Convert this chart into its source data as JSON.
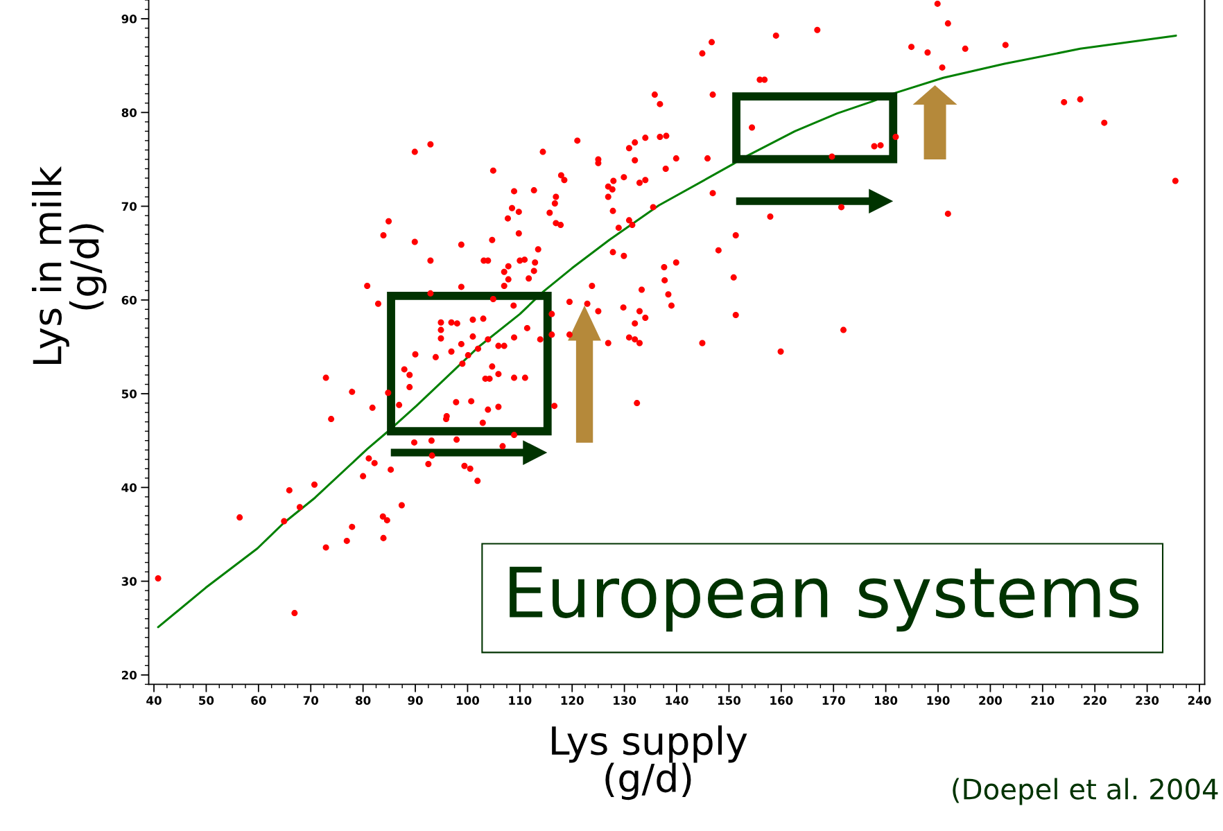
{
  "chart_data": {
    "type": "scatter",
    "xlabel": "Lys supply\n(g/d)",
    "ylabel": "Lys in milk\n(g/d)",
    "annotations": [
      "European systems",
      "(Doepel et al. 2004"
    ],
    "xlim": [
      39,
      241
    ],
    "ylim": [
      19,
      92
    ],
    "xticks": [
      40,
      50,
      60,
      70,
      80,
      90,
      100,
      110,
      120,
      130,
      140,
      150,
      160,
      170,
      180,
      190,
      200,
      210,
      220,
      230,
      240
    ],
    "yticks": [
      20,
      30,
      40,
      50,
      60,
      70,
      80,
      90
    ],
    "marker": "circle",
    "series": [
      {
        "color": "#ff0000",
        "x": [
          89.9,
          92.9,
          104.9,
          108.9,
          108.5,
          109.8,
          107.7,
          109.8,
          84.9,
          83.9,
          89.9,
          98.8,
          104.7,
          92.9,
          103.1,
          103.9,
          110.0,
          107.8,
          107.0,
          107.8,
          107.0,
          80.8,
          98.8,
          82.9,
          104.9,
          92.9,
          108.8,
          94.9,
          94.9,
          94.9,
          96.9,
          98.0,
          101.0,
          103.0,
          101.0,
          98.8,
          90.0,
          93.9,
          96.9,
          100.1,
          102.0,
          103.9,
          105.9,
          107.0,
          108.9,
          104.7,
          99.0,
          87.9,
          105.9,
          88.9,
          88.9,
          103.4,
          104.2,
          108.9,
          111.0,
          72.9,
          77.9,
          81.8,
          86.9,
          84.8,
          97.8,
          100.7,
          103.9,
          105.9,
          73.9,
          96.0,
          95.9,
          102.9,
          108.9,
          89.8,
          93.1,
          97.9,
          106.7,
          93.2,
          81.1,
          82.2,
          85.3,
          92.5,
          99.4,
          100.5,
          80.0,
          101.9,
          70.7,
          65.9,
          67.9,
          87.4,
          56.4,
          64.9,
          83.8,
          84.6,
          77.9,
          76.9,
          83.9,
          72.9,
          40.8,
          66.9,
          114.4,
          121.0,
          125.0,
          125.0,
          135.8,
          136.8,
          144.9,
          146.7,
          159.0,
          166.9,
          146.9,
          155.9,
          156.8,
          154.4,
          130.9,
          132.0,
          134.0,
          136.8,
          138.0,
          132.0,
          139.9,
          145.9,
          137.9,
          117.9,
          118.5,
          129.9,
          127.9,
          126.9,
          127.7,
          126.9,
          132.9,
          134.0,
          112.7,
          116.9,
          116.7,
          115.7,
          116.9,
          117.8,
          127.8,
          135.5,
          146.9,
          157.9,
          171.5,
          130.9,
          131.5,
          128.9,
          151.3,
          148.0,
          139.9,
          137.6,
          137.7,
          150.9,
          127.8,
          129.9,
          113.5,
          110.9,
          112.9,
          112.7,
          111.7,
          123.8,
          169.7,
          111.4,
          113.9,
          116.1,
          116.1,
          116.6,
          119.5,
          122.9,
          125.0,
          129.8,
          132.9,
          134.0,
          132.0,
          130.9,
          132.0,
          132.9,
          126.9,
          144.9,
          151.3,
          159.9,
          171.9,
          132.4,
          138.4,
          139.0,
          133.3,
          119.5,
          189.9,
          191.9,
          184.9,
          188.0,
          195.2,
          202.9,
          190.8,
          214.1,
          217.2,
          221.8,
          235.4,
          191.9,
          177.8,
          179.0,
          181.9
        ],
        "values": [
          75.8,
          76.6,
          73.8,
          71.6,
          69.8,
          69.4,
          68.7,
          67.1,
          68.4,
          66.9,
          66.2,
          65.9,
          66.4,
          64.2,
          64.2,
          64.2,
          64.2,
          63.6,
          63.0,
          62.2,
          61.5,
          61.5,
          61.4,
          59.6,
          60.1,
          60.7,
          59.4,
          57.6,
          56.8,
          55.9,
          57.6,
          57.5,
          57.9,
          58.0,
          56.1,
          55.3,
          54.2,
          53.9,
          54.5,
          54.1,
          54.8,
          55.8,
          55.1,
          55.1,
          56.0,
          52.9,
          53.2,
          52.6,
          52.1,
          52.0,
          50.7,
          51.6,
          51.6,
          51.7,
          51.7,
          51.7,
          50.2,
          48.5,
          48.8,
          50.1,
          49.1,
          49.2,
          48.3,
          48.6,
          47.3,
          47.6,
          47.3,
          46.9,
          45.6,
          44.8,
          45.0,
          45.1,
          44.4,
          43.4,
          43.1,
          42.6,
          41.9,
          42.5,
          42.3,
          42.0,
          41.2,
          40.7,
          40.3,
          39.7,
          37.9,
          38.1,
          36.8,
          36.4,
          36.9,
          36.5,
          35.8,
          34.3,
          34.6,
          33.6,
          30.3,
          26.6,
          75.8,
          77.0,
          75.0,
          74.6,
          81.9,
          80.9,
          86.3,
          87.5,
          88.2,
          88.8,
          81.9,
          83.5,
          83.5,
          78.4,
          76.2,
          76.8,
          77.3,
          77.4,
          77.5,
          74.9,
          75.1,
          75.1,
          74.0,
          73.3,
          72.8,
          73.1,
          72.7,
          72.1,
          71.8,
          71.0,
          72.5,
          72.8,
          71.7,
          71.0,
          70.3,
          69.3,
          68.2,
          68.0,
          69.5,
          69.9,
          71.4,
          68.9,
          69.9,
          68.5,
          68.0,
          67.7,
          66.9,
          65.3,
          64.0,
          63.5,
          62.1,
          62.4,
          65.1,
          64.7,
          65.4,
          64.3,
          64.0,
          63.1,
          62.3,
          61.5,
          75.3,
          57.0,
          55.8,
          58.5,
          56.3,
          48.7,
          59.8,
          59.6,
          58.8,
          59.2,
          58.8,
          58.1,
          57.5,
          56.0,
          55.8,
          55.4,
          55.4,
          55.4,
          58.4,
          54.5,
          56.8,
          49.0,
          60.6,
          59.4,
          61.1,
          56.3,
          91.6,
          89.5,
          87.0,
          86.4,
          86.8,
          87.2,
          84.8,
          81.1,
          81.4,
          78.9,
          72.7,
          69.2,
          76.4,
          76.5,
          77.4
        ]
      },
      {
        "type": "line",
        "color": "#008000",
        "marker": "none",
        "line_style": "solid",
        "x": [
          40.8,
          49.9,
          59.8,
          64.8,
          70.8,
          80.8,
          84.6,
          90.2,
          95.7,
          102.1,
          110.0,
          114.5,
          120.0,
          127.1,
          136.6,
          150.8,
          152.2,
          162.6,
          170.7,
          177.5,
          181.9,
          191.0,
          202.7,
          217.2,
          235.5
        ],
        "values": [
          25.1,
          29.3,
          33.5,
          36.2,
          38.9,
          44.1,
          45.9,
          48.7,
          51.6,
          55.0,
          58.5,
          60.9,
          63.4,
          66.4,
          70.1,
          74.5,
          75.0,
          78.0,
          79.9,
          81.2,
          82.1,
          83.7,
          85.2,
          86.8,
          88.2
        ]
      }
    ]
  }
}
